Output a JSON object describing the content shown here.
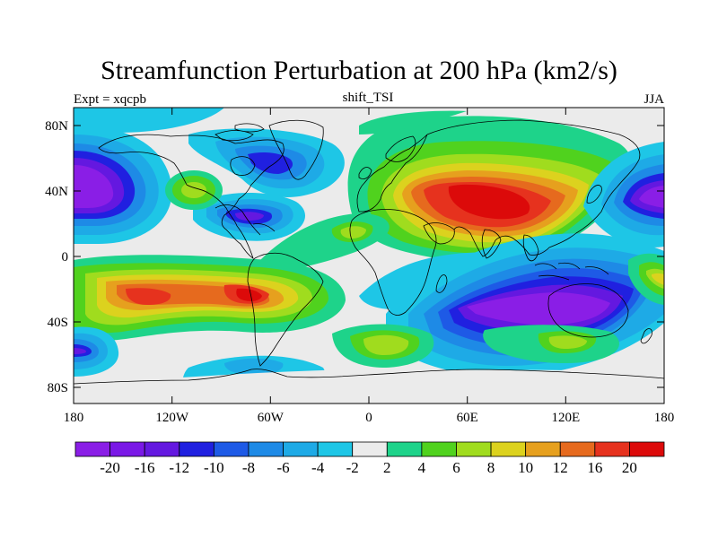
{
  "title": "Streamfunction Perturbation at 200 hPa (km2/s)",
  "subtitle_left": "Expt = xqcpb",
  "subtitle_center": "shift_TSI",
  "subtitle_right": "JJA",
  "y_ticks": [
    "80N",
    "40N",
    "0",
    "40S",
    "80S"
  ],
  "x_ticks": [
    "180",
    "120W",
    "60W",
    "0",
    "60E",
    "120E",
    "180"
  ],
  "colorbar": {
    "colors": [
      "#8a1ee6",
      "#7a18e6",
      "#6418e0",
      "#2020e0",
      "#1e5ae6",
      "#1e8ae6",
      "#1eaae6",
      "#1ec6e6",
      "#ebebeb",
      "#1ed38a",
      "#50d21e",
      "#a0dc1e",
      "#dcd21e",
      "#e6a01e",
      "#e66a1e",
      "#e6321e",
      "#dc0a0a"
    ],
    "labels": [
      "-20",
      "-16",
      "-12",
      "-10",
      "-8",
      "-6",
      "-4",
      "-2",
      "2",
      "4",
      "6",
      "8",
      "10",
      "12",
      "16",
      "20"
    ]
  },
  "chart_data": {
    "type": "heatmap",
    "title": "Streamfunction Perturbation at 200 hPa (km2/s)",
    "variable": "Streamfunction Perturbation",
    "level": "200 hPa",
    "units": "km2/s",
    "experiment": "xqcpb",
    "case": "shift_TSI",
    "season": "JJA",
    "contour_levels": [
      -20,
      -16,
      -12,
      -10,
      -8,
      -6,
      -4,
      -2,
      2,
      4,
      6,
      8,
      10,
      12,
      16,
      20
    ],
    "x_axis": {
      "range": [
        -180,
        180
      ],
      "ticks": [
        "180",
        "120W",
        "60W",
        "0",
        "60E",
        "120E",
        "180"
      ]
    },
    "y_axis": {
      "range": [
        -90,
        90
      ],
      "ticks": [
        "80N",
        "40N",
        "0",
        "40S",
        "80S"
      ]
    },
    "features": [
      {
        "region": "Asia / Tibetan Plateau",
        "lon": 80,
        "lat": 30,
        "value": 20
      },
      {
        "region": "South Indian Ocean / Australia",
        "lon": 95,
        "lat": -32,
        "value": -20
      },
      {
        "region": "Central North Pacific",
        "lon": -175,
        "lat": 25,
        "value": -20
      },
      {
        "region": "West North Pacific",
        "lon": 170,
        "lat": 30,
        "value": -20
      },
      {
        "region": "Southeast USA / Gulf of Mexico",
        "lon": -80,
        "lat": 25,
        "value": -12
      },
      {
        "region": "Northern Canada",
        "lon": -90,
        "lat": 65,
        "value": -10
      },
      {
        "region": "South America",
        "lon": -55,
        "lat": -20,
        "value": 16
      },
      {
        "region": "South Pacific",
        "lon": -145,
        "lat": -22,
        "value": 16
      },
      {
        "region": "South Atlantic high latitudes",
        "lon": 5,
        "lat": -50,
        "value": 8
      },
      {
        "region": "Southern Ocean south of Africa",
        "lon": 40,
        "lat": -68,
        "value": -6
      },
      {
        "region": "Antarctica sector",
        "lon": -60,
        "lat": -75,
        "value": -4
      },
      {
        "region": "North Atlantic",
        "lon": -40,
        "lat": 30,
        "value": 6
      },
      {
        "region": "Western Canada",
        "lon": -115,
        "lat": 45,
        "value": 8
      }
    ]
  }
}
